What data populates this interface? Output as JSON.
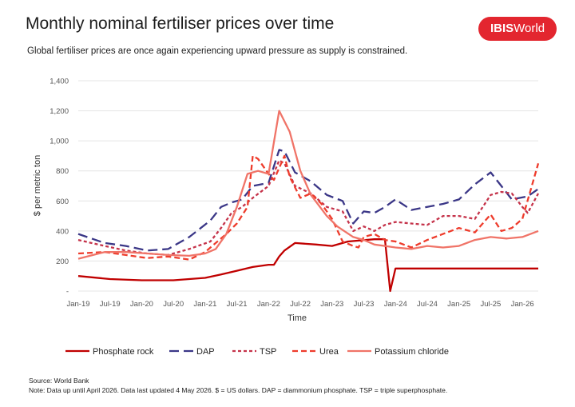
{
  "header": {
    "title": "Monthly nominal fertiliser prices over time",
    "subtitle": "Global fertiliser prices are once again experiencing upward pressure as supply is constrained."
  },
  "logo": {
    "bold": "IBIS",
    "light": "World",
    "color": "#e3262f"
  },
  "chart_data": {
    "type": "line",
    "xlabel": "Time",
    "ylabel": "$ per metric ton",
    "ylim": [
      0,
      1400
    ],
    "yticks": [
      "-",
      "200",
      "400",
      "600",
      "800",
      "1,000",
      "1,200",
      "1,400"
    ],
    "x_tick_labels": [
      "Jan-19",
      "Jul-19",
      "Jan-20",
      "Jul-20",
      "Jan-21",
      "Jul-21",
      "Jan-22",
      "Jul-22",
      "Jan-23",
      "Jul-23",
      "Jan-24",
      "Jul-24",
      "Jan-25",
      "Jul-25",
      "Jan-26"
    ],
    "x_start": "2019-01",
    "x_end": "2026-04",
    "grid": true,
    "legend_position": "bottom",
    "series": [
      {
        "name": "Phosphate rock",
        "color": "#c00000",
        "dash": "solid",
        "points": [
          [
            "2019-01",
            100
          ],
          [
            "2019-07",
            80
          ],
          [
            "2020-01",
            72
          ],
          [
            "2020-07",
            72
          ],
          [
            "2021-01",
            88
          ],
          [
            "2021-04",
            110
          ],
          [
            "2021-07",
            135
          ],
          [
            "2021-10",
            160
          ],
          [
            "2022-01",
            175
          ],
          [
            "2022-02",
            175
          ],
          [
            "2022-03",
            230
          ],
          [
            "2022-04",
            270
          ],
          [
            "2022-06",
            320
          ],
          [
            "2022-10",
            310
          ],
          [
            "2023-01",
            300
          ],
          [
            "2023-04",
            330
          ],
          [
            "2023-09",
            345
          ],
          [
            "2023-11",
            345
          ],
          [
            "2023-12",
            0
          ],
          [
            "2024-01",
            150
          ],
          [
            "2026-04",
            150
          ]
        ]
      },
      {
        "name": "DAP",
        "color": "#3b3787",
        "dash": "long",
        "points": [
          [
            "2019-01",
            380
          ],
          [
            "2019-06",
            320
          ],
          [
            "2019-10",
            300
          ],
          [
            "2020-02",
            270
          ],
          [
            "2020-06",
            280
          ],
          [
            "2020-10",
            360
          ],
          [
            "2021-02",
            470
          ],
          [
            "2021-04",
            560
          ],
          [
            "2021-06",
            590
          ],
          [
            "2021-08",
            610
          ],
          [
            "2021-10",
            700
          ],
          [
            "2022-01",
            720
          ],
          [
            "2022-03",
            940
          ],
          [
            "2022-04",
            930
          ],
          [
            "2022-06",
            790
          ],
          [
            "2022-09",
            730
          ],
          [
            "2022-12",
            640
          ],
          [
            "2023-03",
            600
          ],
          [
            "2023-05",
            450
          ],
          [
            "2023-07",
            530
          ],
          [
            "2023-09",
            520
          ],
          [
            "2023-11",
            560
          ],
          [
            "2024-01",
            610
          ],
          [
            "2024-04",
            540
          ],
          [
            "2024-07",
            560
          ],
          [
            "2024-10",
            580
          ],
          [
            "2025-01",
            610
          ],
          [
            "2025-04",
            710
          ],
          [
            "2025-07",
            790
          ],
          [
            "2025-09",
            700
          ],
          [
            "2025-11",
            610
          ],
          [
            "2026-02",
            630
          ],
          [
            "2026-04",
            680
          ]
        ]
      },
      {
        "name": "TSP",
        "color": "#c5334a",
        "dash": "short",
        "points": [
          [
            "2019-01",
            340
          ],
          [
            "2019-06",
            300
          ],
          [
            "2019-10",
            270
          ],
          [
            "2020-02",
            250
          ],
          [
            "2020-06",
            240
          ],
          [
            "2020-10",
            280
          ],
          [
            "2021-02",
            330
          ],
          [
            "2021-04",
            420
          ],
          [
            "2021-06",
            520
          ],
          [
            "2021-08",
            560
          ],
          [
            "2021-10",
            620
          ],
          [
            "2022-01",
            700
          ],
          [
            "2022-03",
            870
          ],
          [
            "2022-04",
            850
          ],
          [
            "2022-06",
            700
          ],
          [
            "2022-09",
            650
          ],
          [
            "2022-12",
            560
          ],
          [
            "2023-03",
            530
          ],
          [
            "2023-05",
            400
          ],
          [
            "2023-07",
            430
          ],
          [
            "2023-09",
            400
          ],
          [
            "2023-11",
            440
          ],
          [
            "2024-01",
            460
          ],
          [
            "2024-04",
            450
          ],
          [
            "2024-07",
            440
          ],
          [
            "2024-10",
            500
          ],
          [
            "2025-01",
            500
          ],
          [
            "2025-04",
            480
          ],
          [
            "2025-07",
            640
          ],
          [
            "2025-09",
            660
          ],
          [
            "2025-11",
            650
          ],
          [
            "2026-01",
            560
          ],
          [
            "2026-02",
            520
          ],
          [
            "2026-04",
            650
          ]
        ]
      },
      {
        "name": "Urea",
        "color": "#ee3c2c",
        "dash": "medium",
        "points": [
          [
            "2019-01",
            250
          ],
          [
            "2019-06",
            260
          ],
          [
            "2019-10",
            240
          ],
          [
            "2020-02",
            220
          ],
          [
            "2020-06",
            230
          ],
          [
            "2020-10",
            210
          ],
          [
            "2021-01",
            260
          ],
          [
            "2021-03",
            320
          ],
          [
            "2021-05",
            380
          ],
          [
            "2021-07",
            450
          ],
          [
            "2021-09",
            560
          ],
          [
            "2021-10",
            900
          ],
          [
            "2021-11",
            880
          ],
          [
            "2022-01",
            780
          ],
          [
            "2022-02",
            740
          ],
          [
            "2022-04",
            900
          ],
          [
            "2022-05",
            760
          ],
          [
            "2022-07",
            620
          ],
          [
            "2022-09",
            650
          ],
          [
            "2022-11",
            580
          ],
          [
            "2023-01",
            480
          ],
          [
            "2023-03",
            330
          ],
          [
            "2023-05",
            300
          ],
          [
            "2023-06",
            290
          ],
          [
            "2023-07",
            360
          ],
          [
            "2023-09",
            380
          ],
          [
            "2023-11",
            340
          ],
          [
            "2024-01",
            330
          ],
          [
            "2024-04",
            290
          ],
          [
            "2024-07",
            340
          ],
          [
            "2024-10",
            380
          ],
          [
            "2025-01",
            420
          ],
          [
            "2025-04",
            390
          ],
          [
            "2025-07",
            510
          ],
          [
            "2025-09",
            400
          ],
          [
            "2025-11",
            420
          ],
          [
            "2026-01",
            480
          ],
          [
            "2026-04",
            850
          ]
        ]
      },
      {
        "name": "Potassium chloride",
        "color": "#f07468",
        "dash": "solid",
        "points": [
          [
            "2019-01",
            215
          ],
          [
            "2019-06",
            260
          ],
          [
            "2019-10",
            260
          ],
          [
            "2020-02",
            250
          ],
          [
            "2020-06",
            240
          ],
          [
            "2020-10",
            235
          ],
          [
            "2021-01",
            250
          ],
          [
            "2021-03",
            280
          ],
          [
            "2021-05",
            380
          ],
          [
            "2021-07",
            560
          ],
          [
            "2021-09",
            780
          ],
          [
            "2021-11",
            800
          ],
          [
            "2022-01",
            780
          ],
          [
            "2022-03",
            1200
          ],
          [
            "2022-05",
            1060
          ],
          [
            "2022-07",
            800
          ],
          [
            "2022-09",
            640
          ],
          [
            "2022-12",
            500
          ],
          [
            "2023-02",
            430
          ],
          [
            "2023-05",
            360
          ],
          [
            "2023-07",
            340
          ],
          [
            "2023-09",
            310
          ],
          [
            "2023-11",
            300
          ],
          [
            "2024-01",
            290
          ],
          [
            "2024-04",
            280
          ],
          [
            "2024-07",
            300
          ],
          [
            "2024-10",
            290
          ],
          [
            "2025-01",
            300
          ],
          [
            "2025-04",
            340
          ],
          [
            "2025-07",
            360
          ],
          [
            "2025-10",
            350
          ],
          [
            "2026-01",
            360
          ],
          [
            "2026-04",
            400
          ]
        ]
      }
    ]
  },
  "footer": {
    "source": "Source: World Bank",
    "note": "Note: Data up until April 2026. Data last updated 4 May 2026. $ = US dollars. DAP = diammonium phosphate. TSP = triple superphosphate."
  }
}
